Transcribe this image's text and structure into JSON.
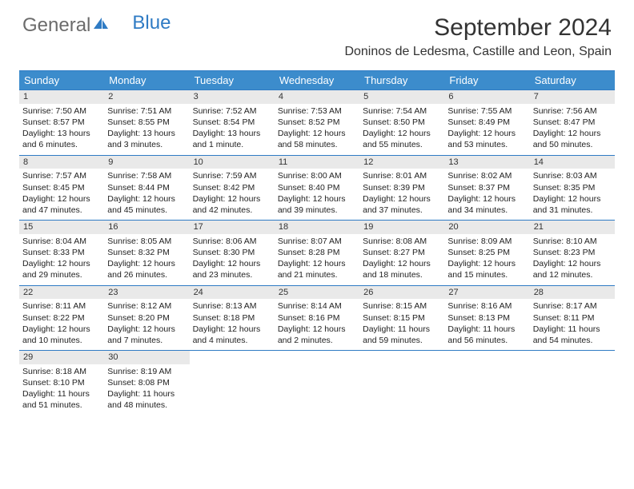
{
  "logo": {
    "text_gray": "General",
    "text_blue": "Blue"
  },
  "title": "September 2024",
  "location": "Doninos de Ledesma, Castille and Leon, Spain",
  "colors": {
    "header_bg": "#3c8ccc",
    "header_text": "#ffffff",
    "border": "#2f7bc4",
    "daynum_bg": "#e9e9e9",
    "body_text": "#222222",
    "logo_gray": "#6b6b6b",
    "logo_blue": "#2f7bc4"
  },
  "day_headers": [
    "Sunday",
    "Monday",
    "Tuesday",
    "Wednesday",
    "Thursday",
    "Friday",
    "Saturday"
  ],
  "weeks": [
    [
      {
        "n": "1",
        "sr": "Sunrise: 7:50 AM",
        "ss": "Sunset: 8:57 PM",
        "d1": "Daylight: 13 hours",
        "d2": "and 6 minutes."
      },
      {
        "n": "2",
        "sr": "Sunrise: 7:51 AM",
        "ss": "Sunset: 8:55 PM",
        "d1": "Daylight: 13 hours",
        "d2": "and 3 minutes."
      },
      {
        "n": "3",
        "sr": "Sunrise: 7:52 AM",
        "ss": "Sunset: 8:54 PM",
        "d1": "Daylight: 13 hours",
        "d2": "and 1 minute."
      },
      {
        "n": "4",
        "sr": "Sunrise: 7:53 AM",
        "ss": "Sunset: 8:52 PM",
        "d1": "Daylight: 12 hours",
        "d2": "and 58 minutes."
      },
      {
        "n": "5",
        "sr": "Sunrise: 7:54 AM",
        "ss": "Sunset: 8:50 PM",
        "d1": "Daylight: 12 hours",
        "d2": "and 55 minutes."
      },
      {
        "n": "6",
        "sr": "Sunrise: 7:55 AM",
        "ss": "Sunset: 8:49 PM",
        "d1": "Daylight: 12 hours",
        "d2": "and 53 minutes."
      },
      {
        "n": "7",
        "sr": "Sunrise: 7:56 AM",
        "ss": "Sunset: 8:47 PM",
        "d1": "Daylight: 12 hours",
        "d2": "and 50 minutes."
      }
    ],
    [
      {
        "n": "8",
        "sr": "Sunrise: 7:57 AM",
        "ss": "Sunset: 8:45 PM",
        "d1": "Daylight: 12 hours",
        "d2": "and 47 minutes."
      },
      {
        "n": "9",
        "sr": "Sunrise: 7:58 AM",
        "ss": "Sunset: 8:44 PM",
        "d1": "Daylight: 12 hours",
        "d2": "and 45 minutes."
      },
      {
        "n": "10",
        "sr": "Sunrise: 7:59 AM",
        "ss": "Sunset: 8:42 PM",
        "d1": "Daylight: 12 hours",
        "d2": "and 42 minutes."
      },
      {
        "n": "11",
        "sr": "Sunrise: 8:00 AM",
        "ss": "Sunset: 8:40 PM",
        "d1": "Daylight: 12 hours",
        "d2": "and 39 minutes."
      },
      {
        "n": "12",
        "sr": "Sunrise: 8:01 AM",
        "ss": "Sunset: 8:39 PM",
        "d1": "Daylight: 12 hours",
        "d2": "and 37 minutes."
      },
      {
        "n": "13",
        "sr": "Sunrise: 8:02 AM",
        "ss": "Sunset: 8:37 PM",
        "d1": "Daylight: 12 hours",
        "d2": "and 34 minutes."
      },
      {
        "n": "14",
        "sr": "Sunrise: 8:03 AM",
        "ss": "Sunset: 8:35 PM",
        "d1": "Daylight: 12 hours",
        "d2": "and 31 minutes."
      }
    ],
    [
      {
        "n": "15",
        "sr": "Sunrise: 8:04 AM",
        "ss": "Sunset: 8:33 PM",
        "d1": "Daylight: 12 hours",
        "d2": "and 29 minutes."
      },
      {
        "n": "16",
        "sr": "Sunrise: 8:05 AM",
        "ss": "Sunset: 8:32 PM",
        "d1": "Daylight: 12 hours",
        "d2": "and 26 minutes."
      },
      {
        "n": "17",
        "sr": "Sunrise: 8:06 AM",
        "ss": "Sunset: 8:30 PM",
        "d1": "Daylight: 12 hours",
        "d2": "and 23 minutes."
      },
      {
        "n": "18",
        "sr": "Sunrise: 8:07 AM",
        "ss": "Sunset: 8:28 PM",
        "d1": "Daylight: 12 hours",
        "d2": "and 21 minutes."
      },
      {
        "n": "19",
        "sr": "Sunrise: 8:08 AM",
        "ss": "Sunset: 8:27 PM",
        "d1": "Daylight: 12 hours",
        "d2": "and 18 minutes."
      },
      {
        "n": "20",
        "sr": "Sunrise: 8:09 AM",
        "ss": "Sunset: 8:25 PM",
        "d1": "Daylight: 12 hours",
        "d2": "and 15 minutes."
      },
      {
        "n": "21",
        "sr": "Sunrise: 8:10 AM",
        "ss": "Sunset: 8:23 PM",
        "d1": "Daylight: 12 hours",
        "d2": "and 12 minutes."
      }
    ],
    [
      {
        "n": "22",
        "sr": "Sunrise: 8:11 AM",
        "ss": "Sunset: 8:22 PM",
        "d1": "Daylight: 12 hours",
        "d2": "and 10 minutes."
      },
      {
        "n": "23",
        "sr": "Sunrise: 8:12 AM",
        "ss": "Sunset: 8:20 PM",
        "d1": "Daylight: 12 hours",
        "d2": "and 7 minutes."
      },
      {
        "n": "24",
        "sr": "Sunrise: 8:13 AM",
        "ss": "Sunset: 8:18 PM",
        "d1": "Daylight: 12 hours",
        "d2": "and 4 minutes."
      },
      {
        "n": "25",
        "sr": "Sunrise: 8:14 AM",
        "ss": "Sunset: 8:16 PM",
        "d1": "Daylight: 12 hours",
        "d2": "and 2 minutes."
      },
      {
        "n": "26",
        "sr": "Sunrise: 8:15 AM",
        "ss": "Sunset: 8:15 PM",
        "d1": "Daylight: 11 hours",
        "d2": "and 59 minutes."
      },
      {
        "n": "27",
        "sr": "Sunrise: 8:16 AM",
        "ss": "Sunset: 8:13 PM",
        "d1": "Daylight: 11 hours",
        "d2": "and 56 minutes."
      },
      {
        "n": "28",
        "sr": "Sunrise: 8:17 AM",
        "ss": "Sunset: 8:11 PM",
        "d1": "Daylight: 11 hours",
        "d2": "and 54 minutes."
      }
    ],
    [
      {
        "n": "29",
        "sr": "Sunrise: 8:18 AM",
        "ss": "Sunset: 8:10 PM",
        "d1": "Daylight: 11 hours",
        "d2": "and 51 minutes."
      },
      {
        "n": "30",
        "sr": "Sunrise: 8:19 AM",
        "ss": "Sunset: 8:08 PM",
        "d1": "Daylight: 11 hours",
        "d2": "and 48 minutes."
      },
      null,
      null,
      null,
      null,
      null
    ]
  ]
}
